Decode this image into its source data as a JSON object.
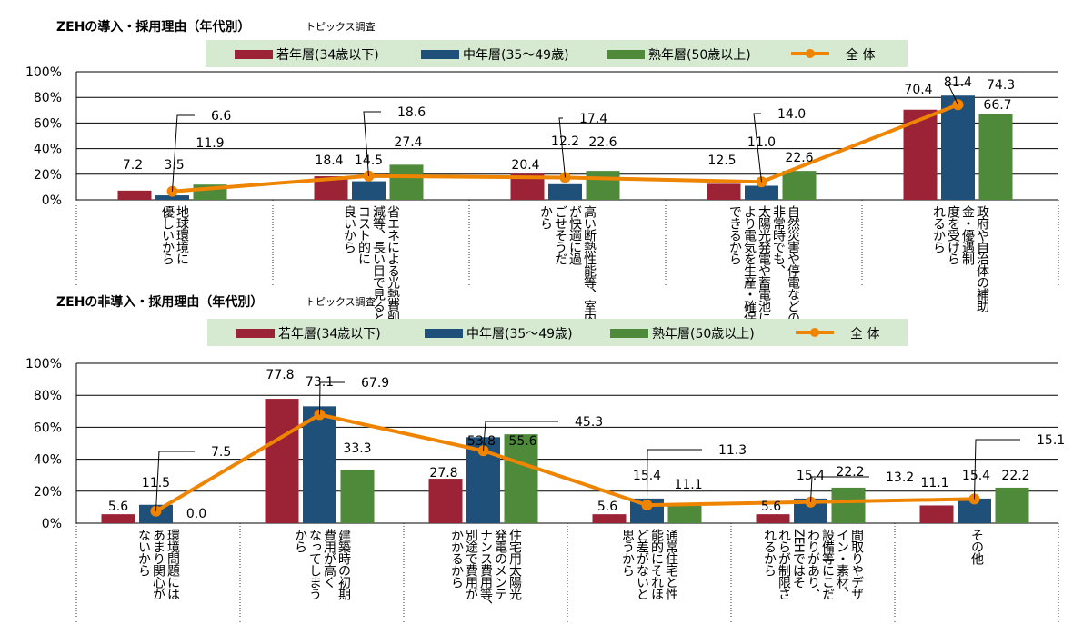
{
  "colors": {
    "young": "#9b2335",
    "middle": "#1f5079",
    "senior": "#4e8a3a",
    "overall": "#ef8400",
    "legend_bg": "#d6ead2",
    "grid": "#000000"
  },
  "chart_data": [
    {
      "type": "bar",
      "title": "ZEHの導入・採用理由（年代別）",
      "subtitle": "トピックス調査",
      "legend": [
        "若年層(34歳以下)",
        "中年層(35～49歳)",
        "熟年層(50歳以上)",
        "全 体"
      ],
      "ylim": [
        0,
        100
      ],
      "yticks": [
        "0%",
        "20%",
        "40%",
        "60%",
        "80%",
        "100%"
      ],
      "categories": [
        [
          "地球環境に",
          "優しいから"
        ],
        [
          "省エネによる光熱費削",
          "減等、長い目で見ると",
          "コスト的に",
          "良いから"
        ],
        [
          "高い断熱性能等、室内",
          "が快適に過",
          "ごせそうだ",
          "から"
        ],
        [
          "自然災害や停電などの",
          "非常時でも、",
          "太陽光発電や蓄電池に",
          "より電気を生産・確保",
          "できるから"
        ],
        [
          "政府や自治体の補助",
          "金・優遇制",
          "度を受けら",
          "れるから"
        ]
      ],
      "series": [
        {
          "name": "若年層(34歳以下)",
          "values": [
            7.2,
            18.4,
            20.4,
            12.5,
            70.4
          ]
        },
        {
          "name": "中年層(35～49歳)",
          "values": [
            3.5,
            14.5,
            12.2,
            11.0,
            81.4
          ]
        },
        {
          "name": "熟年層(50歳以上)",
          "values": [
            11.9,
            27.4,
            22.6,
            22.6,
            66.7
          ]
        },
        {
          "name": "全 体",
          "type": "line",
          "values": [
            6.6,
            18.6,
            17.4,
            14.0,
            74.3
          ]
        }
      ]
    },
    {
      "type": "bar",
      "title": "ZEHの非導入・採用理由（年代別）",
      "subtitle": "トピックス調査",
      "legend": [
        "若年層(34歳以下)",
        "中年層(35～49歳)",
        "熟年層(50歳以上)",
        "全 体"
      ],
      "ylim": [
        0,
        100
      ],
      "yticks": [
        "0%",
        "20%",
        "40%",
        "60%",
        "80%",
        "100%"
      ],
      "categories": [
        [
          "環境問題には",
          "あまり関心が",
          "ないから"
        ],
        [
          "建築時の初期",
          "費用が高く",
          "なってしまう",
          "から"
        ],
        [
          "住宅用太陽光",
          "発電のメンテ",
          "ナンス費用等、",
          "別途で費用が",
          "かかるから"
        ],
        [
          "通常住宅と性",
          "能的にそれほ",
          "ど差がないと",
          "思うから"
        ],
        [
          "間取りやデザ",
          "イン・素材、",
          "設備等にこだ",
          "わりがあり、",
          "ZEHではそ",
          "れらが制限さ",
          "れるから"
        ],
        [
          "その他"
        ]
      ],
      "series": [
        {
          "name": "若年層(34歳以下)",
          "values": [
            5.6,
            77.8,
            27.8,
            5.6,
            5.6,
            11.1
          ]
        },
        {
          "name": "中年層(35～49歳)",
          "values": [
            11.5,
            73.1,
            53.8,
            15.4,
            15.4,
            15.4
          ]
        },
        {
          "name": "熟年層(50歳以上)",
          "values": [
            0.0,
            33.3,
            55.6,
            11.1,
            22.2,
            22.2
          ]
        },
        {
          "name": "全 体",
          "type": "line",
          "values": [
            7.5,
            67.9,
            45.3,
            11.3,
            13.2,
            15.1
          ]
        }
      ]
    }
  ]
}
